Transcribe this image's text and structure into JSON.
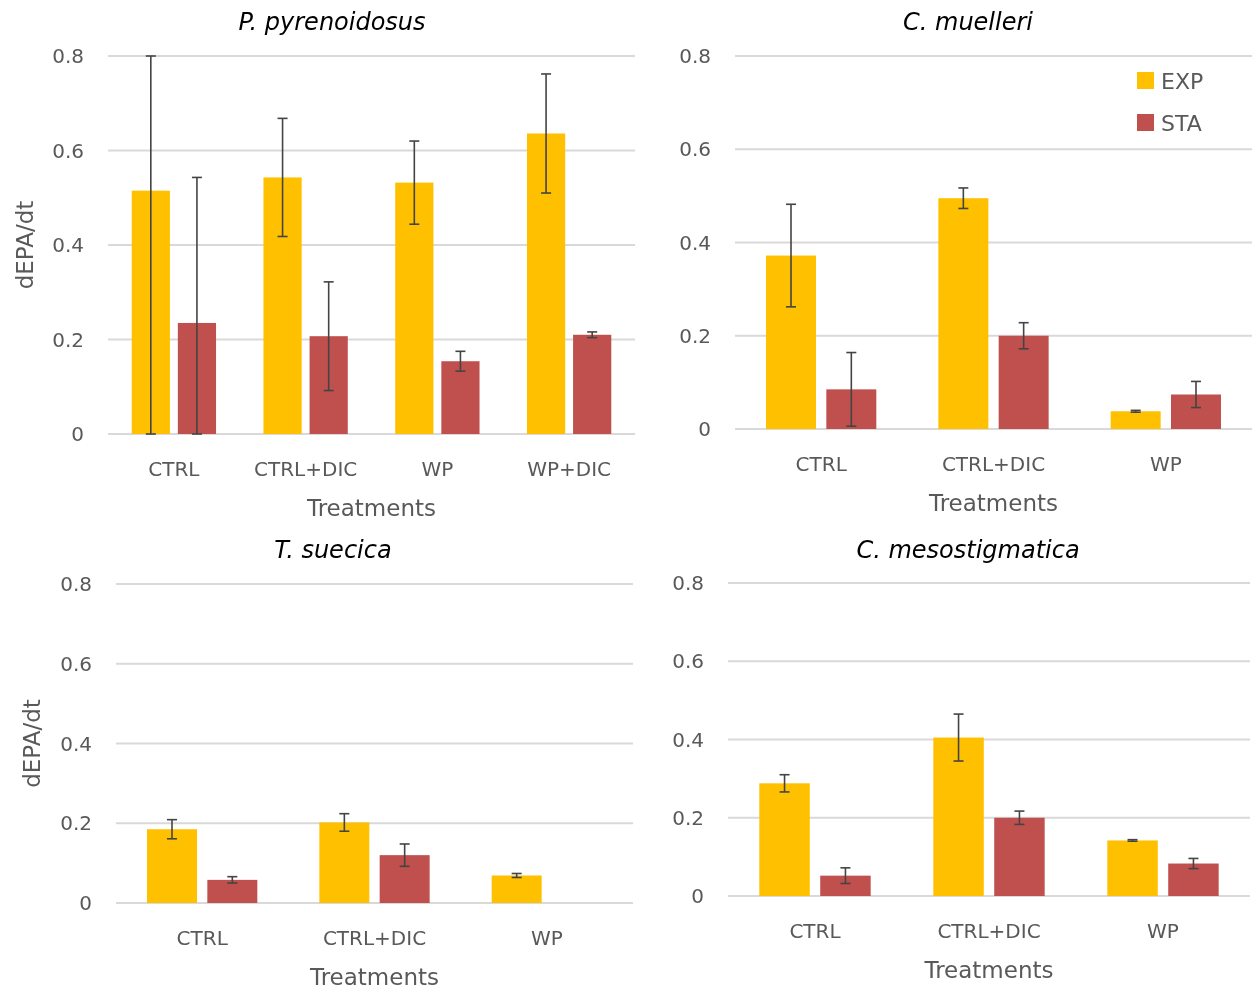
{
  "chart_data": [
    {
      "type": "bar",
      "title": "P. pyrenoidosus",
      "xlabel": "Treatments",
      "ylabel": "dEPA/dt",
      "categories": [
        "CTRL",
        "CTRL+DIC",
        "WP",
        "WP+DIC"
      ],
      "ylim": [
        0,
        0.8
      ],
      "yticks": [
        0,
        0.2,
        0.4,
        0.6,
        0.8
      ],
      "grid": "y",
      "legend": false,
      "series": [
        {
          "color": "#ffc000",
          "values": [
            0.515,
            0.543,
            0.532,
            0.636
          ],
          "errors": [
            [
              0,
              0.8
            ],
            0.125,
            0.088,
            0.126
          ]
        },
        {
          "color": "#c0504d",
          "values": [
            0.235,
            0.207,
            0.154,
            0.21
          ],
          "errors": [
            [
              0,
              0.543
            ],
            0.115,
            0.021,
            0.006
          ]
        }
      ]
    },
    {
      "type": "bar",
      "title": "C. muelleri",
      "xlabel": "Treatments",
      "categories": [
        "CTRL",
        "CTRL+DIC",
        "WP"
      ],
      "ylim": [
        0,
        0.8
      ],
      "yticks": [
        0,
        0.2,
        0.4,
        0.6,
        0.8
      ],
      "grid": "y",
      "legend": "top right",
      "series": [
        {
          "name": "EXP",
          "color": "#ffc000",
          "values": [
            0.372,
            0.495,
            0.038
          ],
          "errors": [
            0.11,
            0.022,
            0.002
          ]
        },
        {
          "name": "STA",
          "color": "#c0504d",
          "values": [
            0.085,
            0.2,
            0.074
          ],
          "errors": [
            0.079,
            0.028,
            0.028
          ]
        }
      ]
    },
    {
      "type": "bar",
      "title": "T. suecica",
      "xlabel": "Treatments",
      "ylabel": "dEPA/dt",
      "categories": [
        "CTRL",
        "CTRL+DIC",
        "WP"
      ],
      "ylim": [
        0,
        0.8
      ],
      "yticks": [
        0,
        0.2,
        0.4,
        0.6,
        0.8
      ],
      "grid": "y",
      "legend": false,
      "series": [
        {
          "color": "#ffc000",
          "values": [
            0.185,
            0.202,
            0.069
          ],
          "errors": [
            0.024,
            0.022,
            0.005
          ]
        },
        {
          "color": "#c0504d",
          "values": [
            0.058,
            0.12,
            null
          ],
          "errors": [
            0.008,
            0.028,
            null
          ]
        }
      ]
    },
    {
      "type": "bar",
      "title": "C. mesostigmatica",
      "xlabel": "Treatments",
      "categories": [
        "CTRL",
        "CTRL+DIC",
        "WP"
      ],
      "ylim": [
        0,
        0.8
      ],
      "yticks": [
        0,
        0.2,
        0.4,
        0.6,
        0.8
      ],
      "grid": "y",
      "legend": false,
      "series": [
        {
          "color": "#ffc000",
          "values": [
            0.288,
            0.405,
            0.142
          ],
          "errors": [
            0.022,
            0.06,
            0.002
          ]
        },
        {
          "color": "#c0504d",
          "values": [
            0.052,
            0.2,
            0.083
          ],
          "errors": [
            0.02,
            0.017,
            0.013
          ]
        }
      ]
    }
  ]
}
